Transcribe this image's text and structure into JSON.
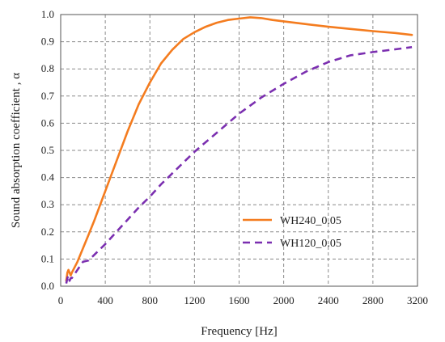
{
  "chart_data": {
    "type": "line",
    "xlabel": "Frequency  [Hz]",
    "ylabel": "Sound absorption coefficient , α",
    "xlim": [
      0,
      3200
    ],
    "ylim": [
      0,
      1.0
    ],
    "xticks": [
      0,
      400,
      800,
      1200,
      1600,
      2000,
      2400,
      2800,
      3200
    ],
    "yticks": [
      0.0,
      0.1,
      0.2,
      0.3,
      0.4,
      0.5,
      0.6,
      0.7,
      0.8,
      0.9,
      1.0
    ],
    "ytick_labels": [
      "0.0",
      "0.1",
      "0.2",
      "0.3",
      "0.4",
      "0.5",
      "0.6",
      "0.7",
      "0.8",
      "0.9",
      "1.0"
    ],
    "grid": true,
    "legend_position": "right-center",
    "series": [
      {
        "name": "WH240_0.05",
        "color": "#f47c1f",
        "style": "solid",
        "x": [
          50,
          60,
          70,
          80,
          90,
          100,
          150,
          200,
          250,
          300,
          400,
          500,
          600,
          700,
          800,
          900,
          1000,
          1100,
          1200,
          1300,
          1400,
          1500,
          1600,
          1700,
          1800,
          1900,
          2000,
          2200,
          2400,
          2600,
          2800,
          3000,
          3150
        ],
        "y": [
          0.02,
          0.05,
          0.06,
          0.05,
          0.04,
          0.05,
          0.09,
          0.14,
          0.19,
          0.24,
          0.35,
          0.46,
          0.57,
          0.67,
          0.75,
          0.82,
          0.87,
          0.91,
          0.935,
          0.955,
          0.97,
          0.98,
          0.985,
          0.99,
          0.987,
          0.98,
          0.975,
          0.965,
          0.955,
          0.947,
          0.939,
          0.932,
          0.925
        ]
      },
      {
        "name": "WH120_0.05",
        "color": "#7b2fb0",
        "style": "dashed",
        "x": [
          50,
          60,
          70,
          80,
          90,
          100,
          150,
          200,
          250,
          300,
          400,
          500,
          600,
          700,
          800,
          900,
          1000,
          1100,
          1200,
          1300,
          1400,
          1500,
          1600,
          1700,
          1800,
          1900,
          2000,
          2200,
          2400,
          2600,
          2800,
          3000,
          3150
        ],
        "y": [
          0.01,
          0.03,
          0.04,
          0.02,
          0.03,
          0.03,
          0.06,
          0.09,
          0.095,
          0.115,
          0.155,
          0.2,
          0.245,
          0.29,
          0.33,
          0.375,
          0.415,
          0.455,
          0.495,
          0.53,
          0.565,
          0.6,
          0.635,
          0.665,
          0.695,
          0.72,
          0.745,
          0.79,
          0.825,
          0.85,
          0.862,
          0.872,
          0.88
        ]
      }
    ]
  }
}
